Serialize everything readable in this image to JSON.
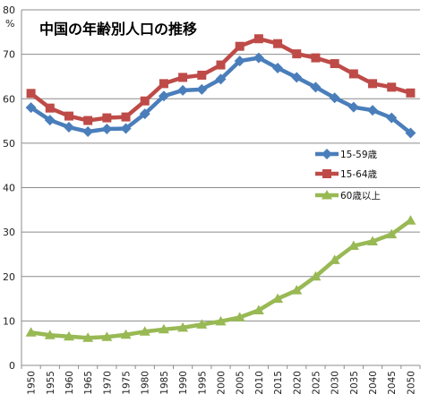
{
  "chart_data": {
    "type": "line",
    "title": "中国の年齢別人口の推移",
    "unit_label": "%",
    "ylim": [
      0,
      80
    ],
    "yticks": [
      0,
      10,
      20,
      30,
      40,
      50,
      60,
      70,
      80
    ],
    "grid": true,
    "legend_position": "right",
    "x": [
      "1950",
      "1955",
      "1960",
      "1965",
      "1970",
      "1975",
      "1980",
      "1985",
      "1990",
      "1995",
      "2000",
      "2005",
      "2010",
      "2015",
      "2020",
      "2025",
      "2030",
      "2035",
      "2040",
      "2045",
      "2050"
    ],
    "series": [
      {
        "name": "15-59歳",
        "color": "#4a7ebb",
        "marker": "diamond",
        "values": [
          58.0,
          55.2,
          53.6,
          52.6,
          53.2,
          53.3,
          56.6,
          60.6,
          61.9,
          62.1,
          64.4,
          68.5,
          69.2,
          66.9,
          64.8,
          62.6,
          60.2,
          58.1,
          57.4,
          55.7,
          52.3
        ]
      },
      {
        "name": "15-64歳",
        "color": "#be4b48",
        "marker": "square",
        "values": [
          61.2,
          57.9,
          56.1,
          55.1,
          55.7,
          55.9,
          59.5,
          63.4,
          64.8,
          65.3,
          67.6,
          71.8,
          73.5,
          72.4,
          70.1,
          69.2,
          67.9,
          65.6,
          63.4,
          62.6,
          61.3
        ]
      },
      {
        "name": "60歳以上",
        "color": "#98b954",
        "marker": "triangle",
        "values": [
          7.4,
          6.8,
          6.5,
          6.2,
          6.4,
          6.9,
          7.6,
          8.1,
          8.5,
          9.2,
          9.9,
          10.8,
          12.4,
          15.0,
          16.9,
          20.0,
          23.7,
          26.9,
          27.9,
          29.5,
          32.6
        ]
      }
    ]
  }
}
